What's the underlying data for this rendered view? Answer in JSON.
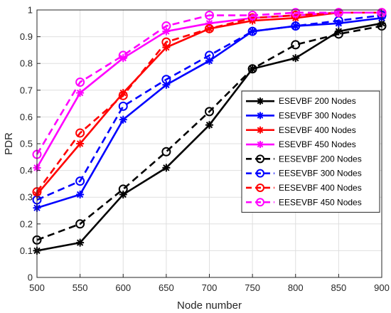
{
  "chart_data": {
    "type": "line",
    "xlabel": "Node number",
    "ylabel": "PDR",
    "xlim": [
      500,
      900
    ],
    "ylim": [
      0,
      1
    ],
    "x": [
      500,
      550,
      600,
      650,
      700,
      750,
      800,
      850,
      900
    ],
    "xticks": [
      "500",
      "550",
      "600",
      "650",
      "700",
      "750",
      "800",
      "850",
      "900"
    ],
    "yticks": [
      "0",
      "0.1",
      "0.2",
      "0.3",
      "0.4",
      "0.5",
      "0.6",
      "0.7",
      "0.8",
      "0.9",
      "1"
    ],
    "grid": true,
    "legend_position": "center-right",
    "series": [
      {
        "name": "ESEVBF 200 Nodes",
        "color": "#000000",
        "dash": "solid",
        "marker": "asterisk",
        "values": [
          0.1,
          0.13,
          0.31,
          0.41,
          0.57,
          0.78,
          0.82,
          0.92,
          0.95
        ]
      },
      {
        "name": "ESEVBF 300 Nodes",
        "color": "#0000ff",
        "dash": "solid",
        "marker": "asterisk",
        "values": [
          0.26,
          0.31,
          0.59,
          0.72,
          0.81,
          0.92,
          0.94,
          0.95,
          0.97
        ]
      },
      {
        "name": "ESEVBF 400 Nodes",
        "color": "#ff0000",
        "dash": "solid",
        "marker": "asterisk",
        "values": [
          0.31,
          0.5,
          0.69,
          0.86,
          0.93,
          0.96,
          0.97,
          0.99,
          0.99
        ]
      },
      {
        "name": "ESEVBF 450 Nodes",
        "color": "#ff00ff",
        "dash": "solid",
        "marker": "asterisk",
        "values": [
          0.41,
          0.69,
          0.82,
          0.92,
          0.95,
          0.97,
          0.98,
          0.99,
          0.99
        ]
      },
      {
        "name": "EESEVBF  200 Nodes",
        "color": "#000000",
        "dash": "dashed",
        "marker": "circle",
        "values": [
          0.14,
          0.2,
          0.33,
          0.47,
          0.62,
          0.78,
          0.87,
          0.91,
          0.94
        ]
      },
      {
        "name": "EESEVBF 300 Nodes",
        "color": "#0000ff",
        "dash": "dashed",
        "marker": "circle",
        "values": [
          0.29,
          0.36,
          0.64,
          0.74,
          0.83,
          0.92,
          0.94,
          0.96,
          0.98
        ]
      },
      {
        "name": "EESEVBF  400 Nodes",
        "color": "#ff0000",
        "dash": "dashed",
        "marker": "circle",
        "values": [
          0.32,
          0.54,
          0.68,
          0.88,
          0.93,
          0.97,
          0.98,
          0.99,
          0.99
        ]
      },
      {
        "name": "EESEVBF  450 Nodes",
        "color": "#ff00ff",
        "dash": "dashed",
        "marker": "circle",
        "values": [
          0.46,
          0.73,
          0.83,
          0.94,
          0.98,
          0.98,
          0.99,
          0.99,
          0.99
        ]
      }
    ]
  }
}
